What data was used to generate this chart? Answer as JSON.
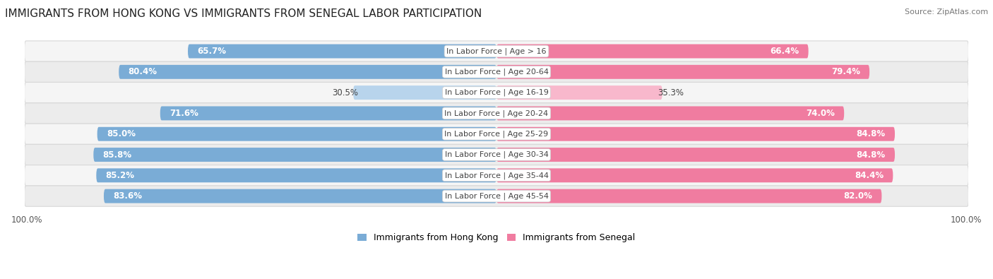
{
  "title": "IMMIGRANTS FROM HONG KONG VS IMMIGRANTS FROM SENEGAL LABOR PARTICIPATION",
  "source": "Source: ZipAtlas.com",
  "categories": [
    "In Labor Force | Age > 16",
    "In Labor Force | Age 20-64",
    "In Labor Force | Age 16-19",
    "In Labor Force | Age 20-24",
    "In Labor Force | Age 25-29",
    "In Labor Force | Age 30-34",
    "In Labor Force | Age 35-44",
    "In Labor Force | Age 45-54"
  ],
  "hong_kong_values": [
    65.7,
    80.4,
    30.5,
    71.6,
    85.0,
    85.8,
    85.2,
    83.6
  ],
  "senegal_values": [
    66.4,
    79.4,
    35.3,
    74.0,
    84.8,
    84.8,
    84.4,
    82.0
  ],
  "hong_kong_color": "#7aacd6",
  "senegal_color": "#f07ca0",
  "hong_kong_color_light": "#b8d4ec",
  "senegal_color_light": "#f8b8cc",
  "bg_row_odd": "#f5f5f5",
  "bg_row_even": "#ececec",
  "bg_color": "#ffffff",
  "title_fontsize": 11,
  "source_fontsize": 8,
  "bar_label_fontsize": 8.5,
  "category_fontsize": 8,
  "legend_fontsize": 9,
  "axis_label_fontsize": 8.5,
  "max_value": 100.0,
  "legend_labels": [
    "Immigrants from Hong Kong",
    "Immigrants from Senegal"
  ]
}
